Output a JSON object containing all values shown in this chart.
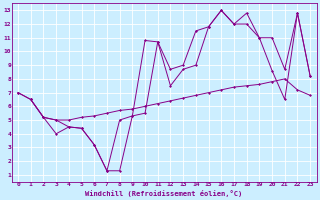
{
  "xlabel": "Windchill (Refroidissement éolien,°C)",
  "bg_color": "#cceeff",
  "line_color": "#880088",
  "grid_color": "#ffffff",
  "spine_color": "#880088",
  "xlim": [
    -0.5,
    23.5
  ],
  "ylim": [
    0.5,
    13.5
  ],
  "xticks": [
    0,
    1,
    2,
    3,
    4,
    5,
    6,
    7,
    8,
    9,
    10,
    11,
    12,
    13,
    14,
    15,
    16,
    17,
    18,
    19,
    20,
    21,
    22,
    23
  ],
  "yticks": [
    1,
    2,
    3,
    4,
    5,
    6,
    7,
    8,
    9,
    10,
    11,
    12,
    13
  ],
  "line1_x": [
    1,
    2,
    3,
    4,
    5,
    6,
    7,
    8,
    9,
    10,
    11,
    12,
    13,
    14,
    15,
    16,
    17,
    18,
    19,
    20,
    21,
    22,
    23
  ],
  "line1_y": [
    6.5,
    5.2,
    5.0,
    5.0,
    5.2,
    5.3,
    5.5,
    5.7,
    5.8,
    6.0,
    6.2,
    6.4,
    6.6,
    6.8,
    7.0,
    7.2,
    7.4,
    7.5,
    7.6,
    7.8,
    8.0,
    7.2,
    6.8
  ],
  "line2_x": [
    0,
    1,
    2,
    3,
    4,
    5,
    6,
    7,
    8,
    9,
    10,
    11,
    12,
    13,
    14,
    15,
    16,
    17,
    18,
    19,
    20,
    21,
    22,
    23
  ],
  "line2_y": [
    7.0,
    6.5,
    5.2,
    4.0,
    4.5,
    4.4,
    3.2,
    1.3,
    5.0,
    5.3,
    10.8,
    10.7,
    8.7,
    9.0,
    11.5,
    11.8,
    13.0,
    12.0,
    12.8,
    11.0,
    11.0,
    8.7,
    12.8,
    8.2
  ],
  "line3_x": [
    0,
    1,
    2,
    3,
    4,
    5,
    6,
    7,
    8,
    9,
    10,
    11,
    12,
    13,
    14,
    15,
    16,
    17,
    18,
    19,
    20,
    21,
    22,
    23
  ],
  "line3_y": [
    7.0,
    6.5,
    5.2,
    5.0,
    4.5,
    4.4,
    3.2,
    1.3,
    1.3,
    5.3,
    5.5,
    10.7,
    7.5,
    8.7,
    9.0,
    11.8,
    13.0,
    12.0,
    12.0,
    11.0,
    8.6,
    6.5,
    12.8,
    8.2
  ]
}
